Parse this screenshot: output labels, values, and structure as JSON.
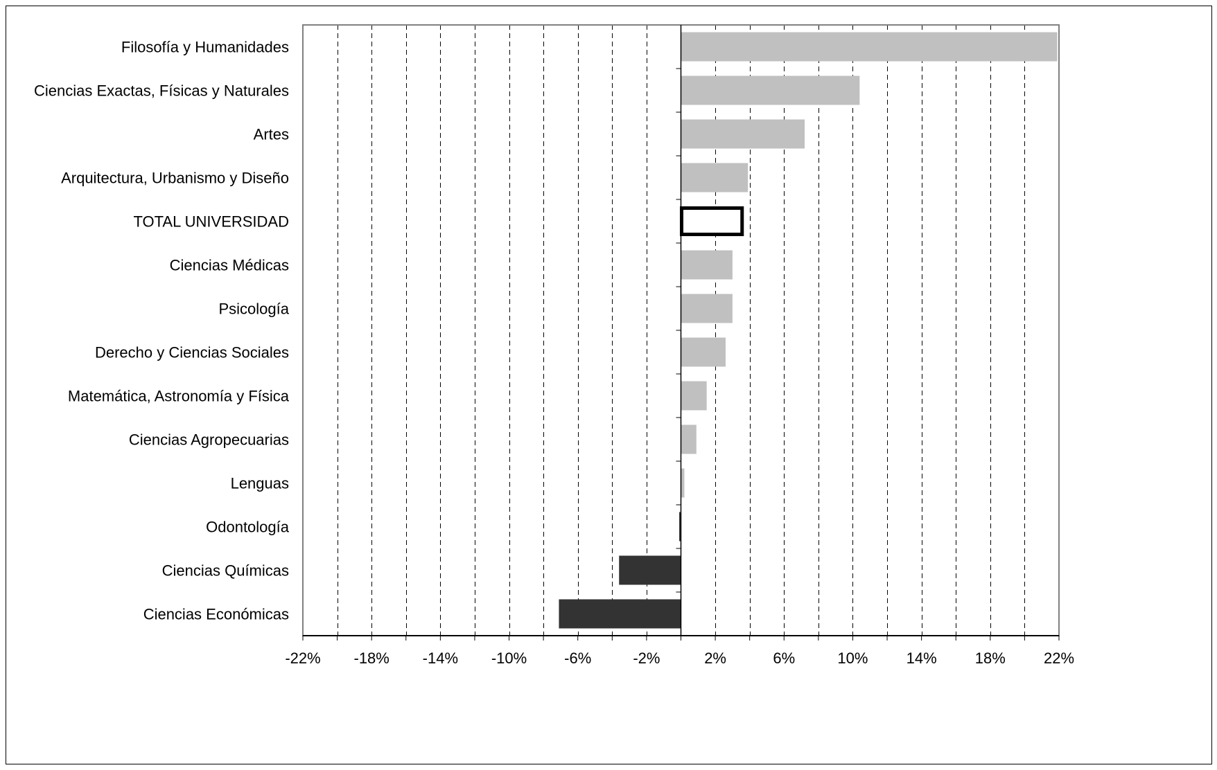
{
  "chart_data": {
    "type": "bar",
    "orientation": "horizontal",
    "title": "",
    "xlabel": "",
    "ylabel": "",
    "categories": [
      "Filosofía y Humanidades",
      "Ciencias Exactas, Físicas y Naturales",
      "Artes",
      "Arquitectura, Urbanismo y Diseño",
      "TOTAL UNIVERSIDAD",
      "Ciencias Médicas",
      "Psicología",
      "Derecho y Ciencias Sociales",
      "Matemática, Astronomía y Física",
      "Ciencias Agropecuarias",
      "Lenguas",
      "Odontología",
      "Ciencias Químicas",
      "Ciencias Económicas"
    ],
    "values": [
      21.9,
      10.4,
      7.2,
      3.9,
      3.6,
      3.0,
      3.0,
      2.6,
      1.5,
      0.9,
      0.2,
      -0.1,
      -3.6,
      -7.1
    ],
    "unit": "%",
    "xlim": [
      -22,
      22
    ],
    "x_ticks": [
      "-22%",
      "-18%",
      "-14%",
      "-10%",
      "-6%",
      "-2%",
      "2%",
      "6%",
      "10%",
      "14%",
      "18%",
      "22%"
    ],
    "x_tick_values": [
      -22,
      -18,
      -14,
      -10,
      -6,
      -2,
      2,
      6,
      10,
      14,
      18,
      22
    ],
    "grid": {
      "vertical": true,
      "style": "dashed",
      "every": 2
    },
    "highlighted_category": "TOTAL UNIVERSIDAD",
    "legend": "none",
    "colors": {
      "positive": "#c0c0c0",
      "negative": "#333333",
      "highlight_fill": "#ffffff",
      "highlight_stroke": "#000000",
      "axis": "#808080",
      "grid": "#000000"
    }
  }
}
